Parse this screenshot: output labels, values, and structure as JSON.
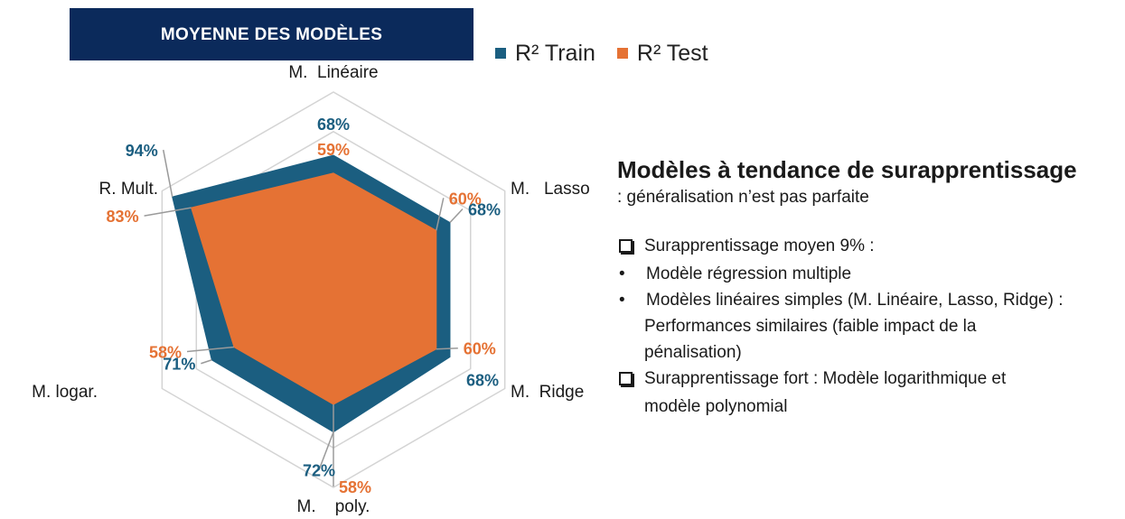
{
  "banner": {
    "title": "MOYENNE DES MODÈLES"
  },
  "legend": [
    {
      "label": "R² Train",
      "color": "#1b5e80"
    },
    {
      "label": "R² Test",
      "color": "#e57234"
    }
  ],
  "chart_data": {
    "type": "radar",
    "title": "",
    "axes": [
      "M.  Linéaire",
      "M.   Lasso",
      "M.  Ridge",
      "M.    poly.",
      "M. logar.",
      "R. Mult."
    ],
    "rlim": [
      0,
      100
    ],
    "grid": true,
    "legend_position": "top-right",
    "series": [
      {
        "name": "R² Train",
        "color": "#1b5e80",
        "values": [
          68,
          68,
          68,
          72,
          71,
          94
        ]
      },
      {
        "name": "R² Test",
        "color": "#e57234",
        "values": [
          59,
          60,
          60,
          58,
          58,
          83
        ]
      }
    ],
    "data_labels": {
      "train": [
        "68%",
        "68%",
        "68%",
        "72%",
        "71%",
        "94%"
      ],
      "test": [
        "59%",
        "60%",
        "60%",
        "58%",
        "58%",
        "83%"
      ]
    }
  },
  "notes": {
    "heading": "Modèles à tendance de surapprentissage",
    "subheading": ": généralisation n’est pas parfaite",
    "lines": [
      {
        "marker": "checkbox",
        "text": "Surapprentissage moyen 9% :"
      },
      {
        "marker": "bullet",
        "text": "Modèle régression multiple"
      },
      {
        "marker": "bullet",
        "text": "Modèles linéaires simples (M. Linéaire, Lasso, Ridge) :"
      },
      {
        "marker": "none",
        "text": "Performances similaires (faible impact de la"
      },
      {
        "marker": "none",
        "text": "pénalisation)"
      },
      {
        "marker": "checkbox",
        "text": "Surapprentissage fort : Modèle logarithmique et"
      },
      {
        "marker": "none",
        "text": "modèle polynomial"
      }
    ]
  }
}
